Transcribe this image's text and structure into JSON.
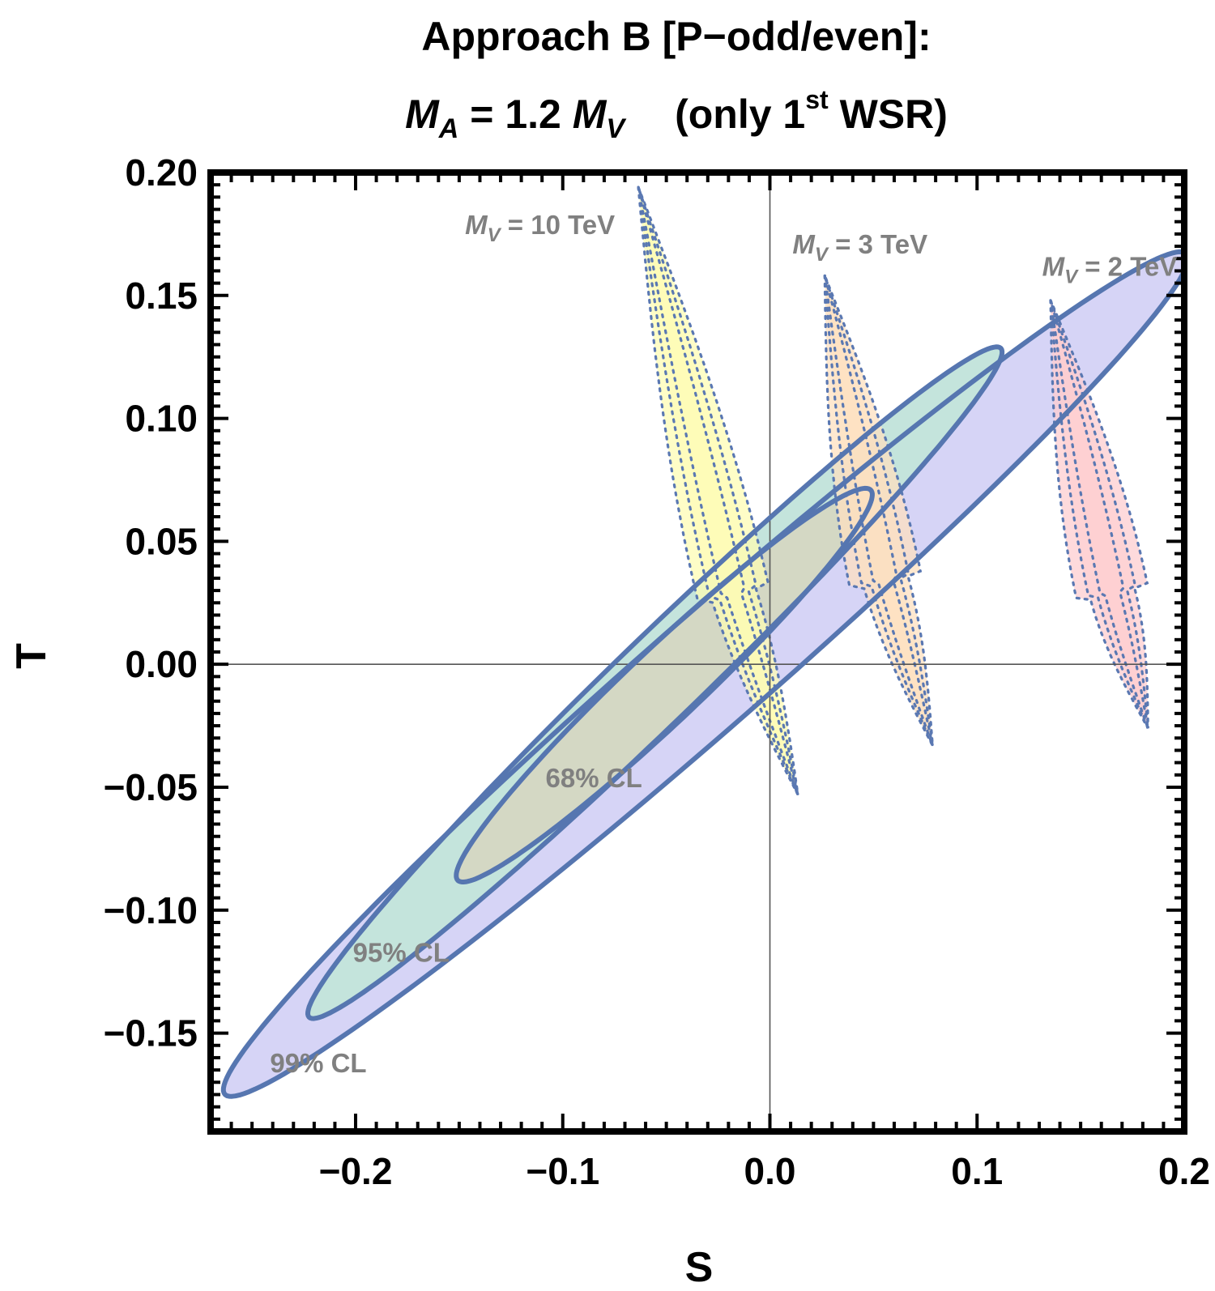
{
  "chart_data": {
    "type": "contour",
    "title_line1": "Approach B  [P−odd/even]:",
    "title_line2": {
      "ma_var": "M",
      "ma_sub": "A",
      "equals": " = 1.2 ",
      "mv_var": "M",
      "mv_sub": "V",
      "paren_open": "(only 1",
      "sup": "st",
      "paren_close": " WSR)"
    },
    "xlabel": "S",
    "ylabel": "T",
    "xlim": [
      -0.27,
      0.2
    ],
    "ylim": [
      -0.19,
      0.2
    ],
    "x_ticks": [
      {
        "value": -0.2,
        "label": "−0.2"
      },
      {
        "value": -0.1,
        "label": "−0.1"
      },
      {
        "value": 0.0,
        "label": "0.0"
      },
      {
        "value": 0.1,
        "label": "0.1"
      },
      {
        "value": 0.2,
        "label": "0.2"
      }
    ],
    "y_ticks": [
      {
        "value": 0.2,
        "label": "0.20"
      },
      {
        "value": 0.15,
        "label": "0.15"
      },
      {
        "value": 0.1,
        "label": "0.10"
      },
      {
        "value": 0.05,
        "label": "0.05"
      },
      {
        "value": 0.0,
        "label": "0.00"
      },
      {
        "value": -0.05,
        "label": "−0.05"
      },
      {
        "value": -0.1,
        "label": "−0.10"
      },
      {
        "value": -0.15,
        "label": "−0.15"
      }
    ],
    "confidence_ellipses": [
      {
        "name": "99% CL",
        "label": "99% CL",
        "center": [
          -0.031,
          -0.004
        ],
        "major_end": [
          -0.263,
          -0.175
        ],
        "minor_end": [
          -0.0113,
          -0.0201
        ],
        "fill": "#d6d4f6",
        "label_at": [
          -0.218,
          -0.162
        ]
      },
      {
        "name": "95% CL",
        "label": "95% CL",
        "center": [
          -0.0555,
          -0.0075
        ],
        "major_end": [
          -0.2225,
          -0.1435
        ],
        "minor_end": [
          -0.0415,
          -0.0201
        ],
        "fill": "#c4e4dc",
        "label_at": [
          -0.178,
          -0.117
        ]
      },
      {
        "name": "68% CL",
        "label": "68% CL",
        "center": [
          -0.051,
          -0.0085
        ],
        "major_end": [
          -0.151,
          -0.0875
        ],
        "minor_end": [
          -0.0417,
          -0.0215
        ],
        "fill": "#d4d8c4",
        "label_at": [
          -0.085,
          -0.046
        ]
      }
    ],
    "mv_regions": [
      {
        "name": "M_V = 10 TeV",
        "label_var": "M",
        "label_sub": "V",
        "label_value": " = 10 TeV",
        "label_at": [
          -0.111,
          0.179
        ],
        "color": "#fdfcb4",
        "tip_top": [
          -0.0635,
          0.194
        ],
        "mid": [
          -0.018,
          0.03
        ],
        "tip_bottom": [
          0.0135,
          -0.053
        ],
        "halfwidths": [
          0.0175,
          0.011
        ]
      },
      {
        "name": "M_V = 3 TeV",
        "label_var": "M",
        "label_sub": "V",
        "label_value": " = 3 TeV",
        "label_at": [
          0.0435,
          0.171
        ],
        "color": "#fde0c0",
        "tip_top": [
          0.0265,
          0.158
        ],
        "mid": [
          0.0555,
          0.035
        ],
        "tip_bottom": [
          0.0785,
          -0.033
        ],
        "halfwidths": [
          0.0175,
          0.011
        ]
      },
      {
        "name": "M_V = 2 TeV",
        "label_var": "M",
        "label_sub": "V",
        "label_value": " = 2 TeV",
        "label_at": [
          0.164,
          0.162
        ],
        "color": "#fdcdd0",
        "tip_top": [
          0.1355,
          0.148
        ],
        "mid": [
          0.165,
          0.03
        ],
        "tip_bottom": [
          0.1825,
          -0.026
        ],
        "halfwidths": [
          0.0175,
          0.011
        ]
      }
    ],
    "reference_lines": {
      "x": 0.0,
      "y": 0.0
    },
    "colors": {
      "ellipse_stroke": "#5676b0",
      "region_dots": "#5a78b2",
      "label_gray": "#808080",
      "frame": "#000000"
    }
  }
}
